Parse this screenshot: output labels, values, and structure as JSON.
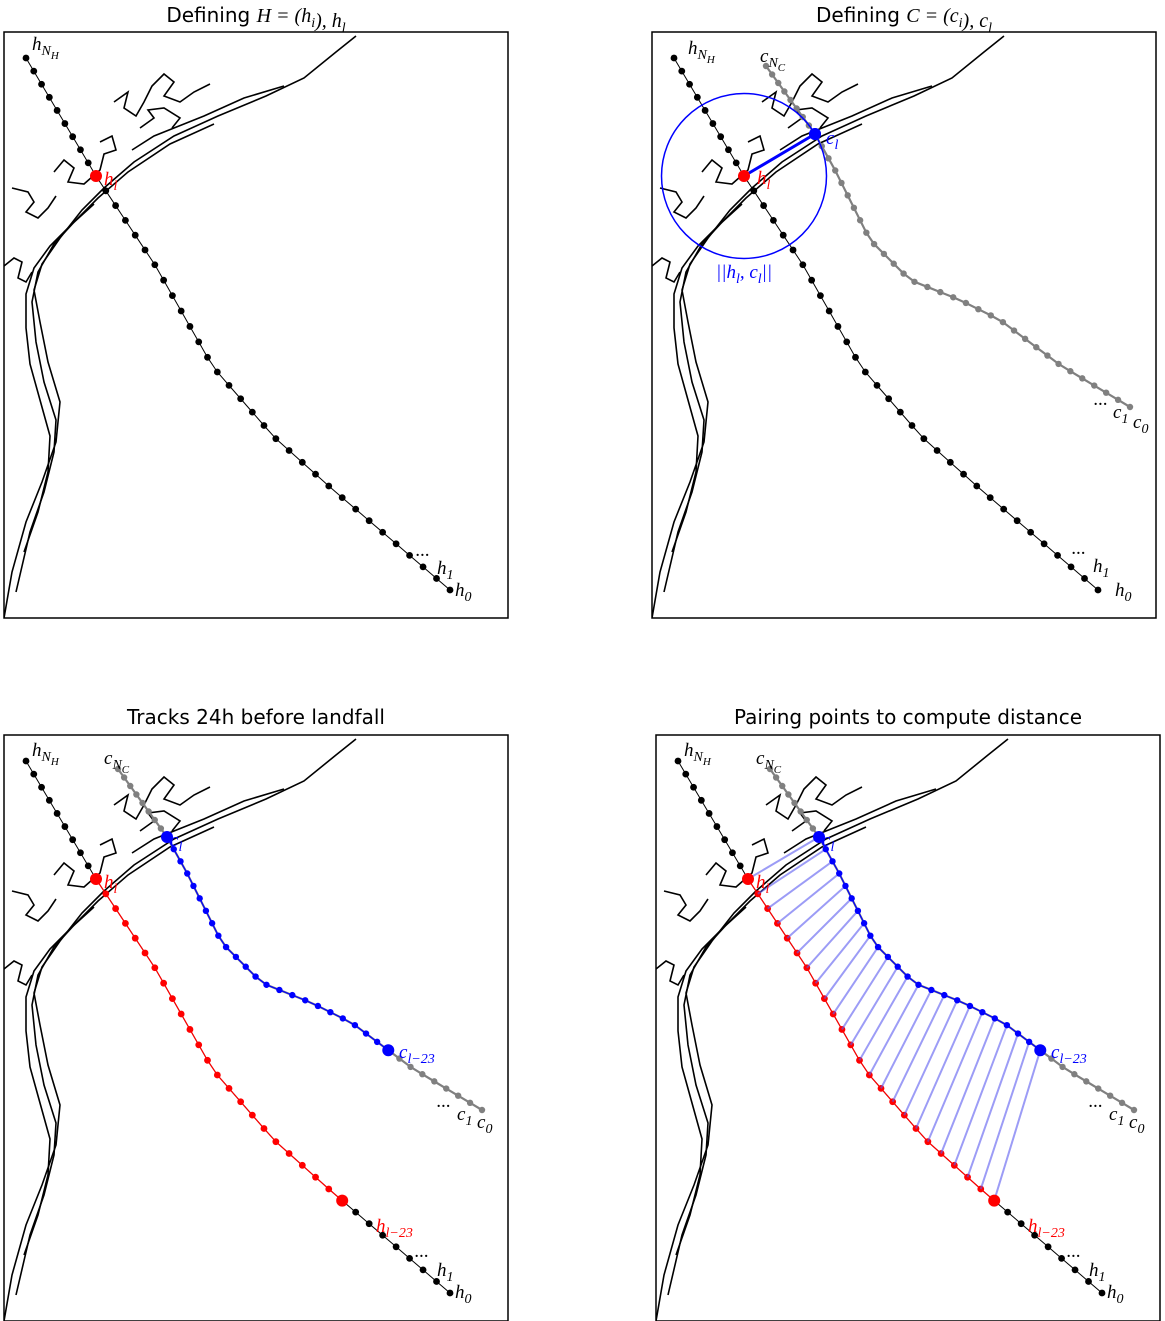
{
  "panels": [
    {
      "title": [
        {
          "text": "Defining "
        },
        {
          "text": "H",
          "math": true
        },
        {
          "text": " = (",
          "math": true
        },
        {
          "text": "h",
          "math": true
        },
        {
          "text": "i",
          "math": true,
          "level": 1
        },
        {
          "text": "), ",
          "math": true
        },
        {
          "text": "h",
          "math": true
        },
        {
          "text": "l",
          "math": true,
          "level": 1
        }
      ],
      "labels": [
        {
          "parts": [
            {
              "text": "h"
            },
            {
              "text": "N",
              "level": 1
            },
            {
              "text": "H",
              "level": 2
            }
          ],
          "color": "#000000"
        },
        {
          "parts": [
            {
              "text": "h"
            },
            {
              "text": "l",
              "level": 1
            }
          ],
          "color": "#ff0000"
        },
        {
          "parts": [
            {
              "text": "···"
            }
          ],
          "color": "#000000"
        },
        {
          "parts": [
            {
              "text": "h"
            },
            {
              "text": "1",
              "level": 1
            }
          ],
          "color": "#000000"
        },
        {
          "parts": [
            {
              "text": "h"
            },
            {
              "text": "0",
              "level": 1
            }
          ],
          "color": "#000000"
        }
      ]
    },
    {
      "title": [
        {
          "text": "Defining "
        },
        {
          "text": "C",
          "math": true
        },
        {
          "text": " = (",
          "math": true
        },
        {
          "text": "c",
          "math": true
        },
        {
          "text": "i",
          "math": true,
          "level": 1
        },
        {
          "text": "), ",
          "math": true
        },
        {
          "text": "c",
          "math": true
        },
        {
          "text": "l",
          "math": true,
          "level": 1
        }
      ],
      "labels": [
        {
          "parts": [
            {
              "text": "h"
            },
            {
              "text": "N",
              "level": 1
            },
            {
              "text": "H",
              "level": 2
            }
          ],
          "color": "#000000"
        },
        {
          "parts": [
            {
              "text": "c"
            },
            {
              "text": "N",
              "level": 1
            },
            {
              "text": "C",
              "level": 2
            }
          ],
          "color": "#000000"
        },
        {
          "parts": [
            {
              "text": "c"
            },
            {
              "text": "l",
              "level": 1
            }
          ],
          "color": "#0000ff"
        },
        {
          "parts": [
            {
              "text": "h"
            },
            {
              "text": "l",
              "level": 1
            }
          ],
          "color": "#ff0000"
        },
        {
          "parts": [
            {
              "text": "||h"
            },
            {
              "text": "l",
              "level": 1
            },
            {
              "text": ", c"
            },
            {
              "text": "l",
              "level": 1
            },
            {
              "text": "||"
            }
          ],
          "color": "#0000ff"
        },
        {
          "parts": [
            {
              "text": "···"
            }
          ],
          "color": "#000000"
        },
        {
          "parts": [
            {
              "text": "c"
            },
            {
              "text": "1",
              "level": 1
            }
          ],
          "color": "#000000"
        },
        {
          "parts": [
            {
              "text": "c"
            },
            {
              "text": "0",
              "level": 1
            }
          ],
          "color": "#000000"
        },
        {
          "parts": [
            {
              "text": "···"
            }
          ],
          "color": "#000000"
        },
        {
          "parts": [
            {
              "text": "h"
            },
            {
              "text": "1",
              "level": 1
            }
          ],
          "color": "#000000"
        },
        {
          "parts": [
            {
              "text": "h"
            },
            {
              "text": "0",
              "level": 1
            }
          ],
          "color": "#000000"
        }
      ]
    },
    {
      "title": [
        {
          "text": "Tracks 24h before landfall"
        }
      ],
      "labels": [
        {
          "parts": [
            {
              "text": "h"
            },
            {
              "text": "N",
              "level": 1
            },
            {
              "text": "H",
              "level": 2
            }
          ],
          "color": "#000000"
        },
        {
          "parts": [
            {
              "text": "c"
            },
            {
              "text": "N",
              "level": 1
            },
            {
              "text": "C",
              "level": 2
            }
          ],
          "color": "#000000"
        },
        {
          "parts": [
            {
              "text": "c"
            },
            {
              "text": "l",
              "level": 1
            }
          ],
          "color": "#0000ff"
        },
        {
          "parts": [
            {
              "text": "h"
            },
            {
              "text": "l",
              "level": 1
            }
          ],
          "color": "#ff0000"
        },
        {
          "parts": [
            {
              "text": "c"
            },
            {
              "text": "l−23",
              "level": 1
            }
          ],
          "color": "#0000ff"
        },
        {
          "parts": [
            {
              "text": "···"
            }
          ],
          "color": "#000000"
        },
        {
          "parts": [
            {
              "text": "c"
            },
            {
              "text": "1",
              "level": 1
            }
          ],
          "color": "#000000"
        },
        {
          "parts": [
            {
              "text": "c"
            },
            {
              "text": "0",
              "level": 1
            }
          ],
          "color": "#000000"
        },
        {
          "parts": [
            {
              "text": "h"
            },
            {
              "text": "l−23",
              "level": 1
            }
          ],
          "color": "#ff0000"
        },
        {
          "parts": [
            {
              "text": "···"
            }
          ],
          "color": "#000000"
        },
        {
          "parts": [
            {
              "text": "h"
            },
            {
              "text": "1",
              "level": 1
            }
          ],
          "color": "#000000"
        },
        {
          "parts": [
            {
              "text": "h"
            },
            {
              "text": "0",
              "level": 1
            }
          ],
          "color": "#000000"
        }
      ]
    },
    {
      "title": [
        {
          "text": "Pairing points to compute distance"
        }
      ],
      "labels": [
        {
          "parts": [
            {
              "text": "h"
            },
            {
              "text": "N",
              "level": 1
            },
            {
              "text": "H",
              "level": 2
            }
          ],
          "color": "#000000"
        },
        {
          "parts": [
            {
              "text": "c"
            },
            {
              "text": "N",
              "level": 1
            },
            {
              "text": "C",
              "level": 2
            }
          ],
          "color": "#000000"
        },
        {
          "parts": [
            {
              "text": "c"
            },
            {
              "text": "l",
              "level": 1
            }
          ],
          "color": "#0000ff"
        },
        {
          "parts": [
            {
              "text": "h"
            },
            {
              "text": "l",
              "level": 1
            }
          ],
          "color": "#ff0000"
        },
        {
          "parts": [
            {
              "text": "c"
            },
            {
              "text": "l−23",
              "level": 1
            }
          ],
          "color": "#0000ff"
        },
        {
          "parts": [
            {
              "text": "···"
            }
          ],
          "color": "#000000"
        },
        {
          "parts": [
            {
              "text": "c"
            },
            {
              "text": "1",
              "level": 1
            }
          ],
          "color": "#000000"
        },
        {
          "parts": [
            {
              "text": "c"
            },
            {
              "text": "0",
              "level": 1
            }
          ],
          "color": "#000000"
        },
        {
          "parts": [
            {
              "text": "h"
            },
            {
              "text": "l−23",
              "level": 1
            }
          ],
          "color": "#ff0000"
        },
        {
          "parts": [
            {
              "text": "···"
            }
          ],
          "color": "#000000"
        },
        {
          "parts": [
            {
              "text": "h"
            },
            {
              "text": "1",
              "level": 1
            }
          ],
          "color": "#000000"
        },
        {
          "parts": [
            {
              "text": "h"
            },
            {
              "text": "0",
              "level": 1
            }
          ],
          "color": "#000000"
        }
      ]
    }
  ]
}
